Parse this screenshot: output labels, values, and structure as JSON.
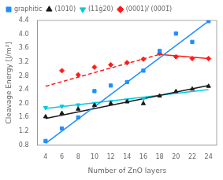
{
  "chart_data": {
    "type": "scatter",
    "xlabel": "Number of ZnO layers",
    "ylabel": "Cleavage Energy [J/m²]",
    "xlim": [
      3,
      25
    ],
    "ylim": [
      0.8,
      4.4
    ],
    "xticks": [
      4,
      6,
      8,
      10,
      12,
      14,
      16,
      18,
      20,
      22,
      24
    ],
    "yticks": [
      0.8,
      1.2,
      1.6,
      {
        "value": 2.0,
        "label": "2.0"
      },
      2.4,
      2.8,
      3.2,
      3.6,
      {
        "value": 4.0,
        "label": "4.0"
      },
      4.4
    ],
    "grid": false,
    "legend": "upper left",
    "series": [
      {
        "type": "line",
        "color": "#1e8fff",
        "line_style": "solid",
        "x": [
          4,
          24
        ],
        "values": [
          0.85,
          4.38
        ]
      },
      {
        "type": "scatter",
        "name": "graphitic",
        "color": "#1e8fff",
        "marker": "square",
        "x": [
          4,
          6,
          8,
          10,
          12,
          14,
          16,
          18,
          20,
          22,
          24
        ],
        "values": [
          0.92,
          1.28,
          1.6,
          2.36,
          2.52,
          2.62,
          2.95,
          3.52,
          4.02,
          3.78,
          4.38
        ]
      },
      {
        "type": "line",
        "color": "#1a1a1a",
        "line_style": "solid",
        "x": [
          4,
          24
        ],
        "values": [
          1.57,
          2.52
        ]
      },
      {
        "type": "scatter",
        "name": "(1010)",
        "color": "#1a1a1a",
        "marker": "triangle-up",
        "x": [
          4,
          6,
          8,
          10,
          12,
          14,
          16,
          18,
          20,
          22,
          24
        ],
        "values": [
          1.62,
          1.72,
          1.84,
          1.95,
          2.0,
          2.05,
          2.0,
          2.22,
          2.35,
          2.42,
          2.5
        ]
      },
      {
        "type": "line",
        "color": "#00ccdd",
        "line_style": "solid",
        "x": [
          4,
          24
        ],
        "values": [
          1.86,
          2.4
        ]
      },
      {
        "type": "scatter",
        "name": "(11ġ20)",
        "color": "#00ccdd",
        "marker": "triangle-down",
        "x": [
          4,
          6,
          8,
          10,
          12,
          14,
          16
        ],
        "values": [
          1.88,
          1.92,
          1.96,
          2.0,
          2.05,
          2.1,
          2.14
        ]
      },
      {
        "type": "line",
        "color": "#ff1a1a",
        "line_style": "dashed",
        "x": [
          4,
          18
        ],
        "values": [
          2.5,
          3.42
        ]
      },
      {
        "type": "line",
        "color": "#ff1a1a",
        "line_style": "solid",
        "x": [
          18,
          24
        ],
        "values": [
          3.42,
          3.3
        ]
      },
      {
        "type": "scatter",
        "name": "(0001)/ (0001̅)",
        "color": "#ff1a1a",
        "marker": "diamond",
        "x": [
          6,
          8,
          10,
          12,
          14,
          16,
          18,
          20,
          22,
          24
        ],
        "values": [
          2.95,
          2.83,
          3.05,
          3.12,
          3.18,
          3.28,
          3.45,
          3.35,
          3.3,
          3.3
        ]
      }
    ]
  }
}
